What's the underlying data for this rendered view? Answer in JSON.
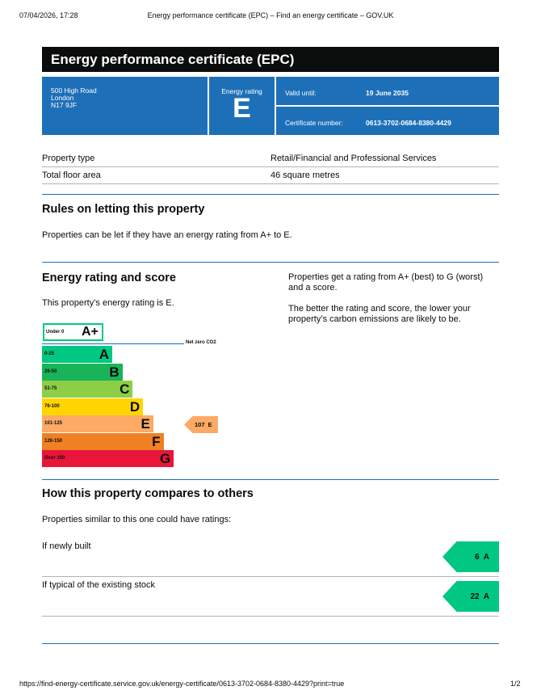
{
  "browser": {
    "datetime": "07/04/2026, 17:28",
    "page_title": "Energy performance certificate (EPC) – Find an energy certificate – GOV.UK",
    "url": "https://find-energy-certificate.service.gov.uk/energy-certificate/0613-3702-0684-8380-4429?print=true",
    "page": "1/2"
  },
  "title": "Energy performance certificate (EPC)",
  "address": [
    "500 High Road",
    "London",
    "N17 9JF"
  ],
  "rating_label": "Energy rating",
  "rating": "E",
  "valid_label": "Valid until:",
  "valid": "19 June 2035",
  "cert_label": "Certificate number:",
  "cert": "0613-3702-0684-8380-4429",
  "details": [
    {
      "k": "Property type",
      "v": "Retail/Financial and Professional Services"
    },
    {
      "k": "Total floor area",
      "v": "46 square metres"
    }
  ],
  "rules": {
    "heading": "Rules on letting this property",
    "text": "Properties can be let if they have an energy rating from A+ to E."
  },
  "score": {
    "heading": "Energy rating and score",
    "text": "This property’s energy rating is E.",
    "side1": "Properties get a rating from A+ (best) to G (worst) and a score.",
    "side2": "The better the rating and score, the lower your property’s carbon emissions are likely to be.",
    "net_zero": "Net zero CO2",
    "current": "107  E",
    "bands": [
      {
        "range": "Under 0",
        "letter": "A+",
        "color": "#ffffff"
      },
      {
        "range": "0-25",
        "letter": "A",
        "color": "#00c781"
      },
      {
        "range": "26-50",
        "letter": "B",
        "color": "#19b459"
      },
      {
        "range": "51-75",
        "letter": "C",
        "color": "#8dce46"
      },
      {
        "range": "76-100",
        "letter": "D",
        "color": "#ffd500"
      },
      {
        "range": "101-125",
        "letter": "E",
        "color": "#fcaa65"
      },
      {
        "range": "126-150",
        "letter": "F",
        "color": "#ef8023"
      },
      {
        "range": "Over 150",
        "letter": "G",
        "color": "#e9153b"
      }
    ]
  },
  "compare": {
    "heading": "How this property compares to others",
    "text": "Properties similar to this one could have ratings:",
    "items": [
      {
        "label": "If newly built",
        "value": "6  A"
      },
      {
        "label": "If typical of the existing stock",
        "value": "22  A"
      }
    ]
  }
}
